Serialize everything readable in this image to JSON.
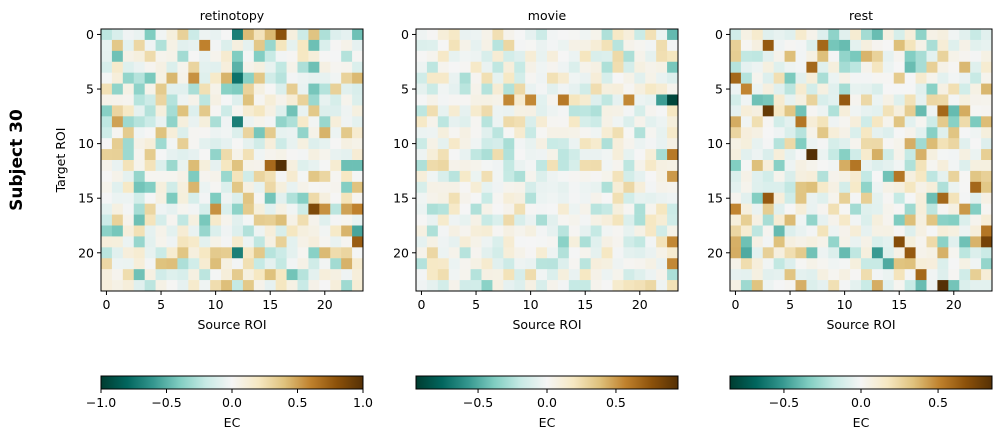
{
  "figure_label": "Subject 30",
  "chart_data": [
    {
      "type": "heatmap",
      "title": "retinotopy",
      "xlabel": "Source ROI",
      "ylabel": "Target ROI",
      "size": 24,
      "xticks": [
        0,
        5,
        10,
        15,
        20
      ],
      "yticks": [
        0,
        5,
        10,
        15,
        20
      ],
      "colormap": "BrBG_r",
      "colorbar": {
        "label": "EC",
        "range": [
          -1.0,
          1.0
        ],
        "ticks": [
          -1.0,
          -0.5,
          0.0,
          0.5,
          1.0
        ],
        "tick_labels": [
          "−1.0",
          "−0.5",
          "0.0",
          "0.5",
          "1.0"
        ]
      },
      "seed": 30,
      "scale": 0.45,
      "strong_cells": [
        [
          0,
          12,
          -0.7
        ],
        [
          0,
          16,
          0.8
        ],
        [
          0,
          4,
          -0.4
        ],
        [
          1,
          9,
          0.6
        ],
        [
          3,
          12,
          -0.5
        ],
        [
          4,
          12,
          -0.75
        ],
        [
          4,
          8,
          0.55
        ],
        [
          6,
          13,
          0.4
        ],
        [
          8,
          12,
          -0.7
        ],
        [
          8,
          1,
          0.5
        ],
        [
          12,
          16,
          1.0
        ],
        [
          12,
          15,
          0.7
        ],
        [
          12,
          22,
          -0.45
        ],
        [
          12,
          23,
          -0.45
        ],
        [
          16,
          10,
          0.55
        ],
        [
          16,
          20,
          0.55
        ],
        [
          16,
          19,
          0.85
        ],
        [
          16,
          22,
          0.5
        ],
        [
          16,
          23,
          0.6
        ],
        [
          18,
          23,
          -0.55
        ],
        [
          19,
          23,
          0.75
        ],
        [
          20,
          12,
          -0.7
        ],
        [
          21,
          22,
          0.45
        ],
        [
          22,
          15,
          0.4
        ]
      ]
    },
    {
      "type": "heatmap",
      "title": "movie",
      "xlabel": "Source ROI",
      "ylabel": "",
      "size": 24,
      "xticks": [
        0,
        5,
        10,
        15,
        20
      ],
      "yticks": [
        0,
        5,
        10,
        15,
        20
      ],
      "colormap": "BrBG_r",
      "colorbar": {
        "label": "EC",
        "range": [
          -0.95,
          0.95
        ],
        "ticks": [
          -0.5,
          0.0,
          0.5
        ],
        "tick_labels": [
          "−0.5",
          "0.0",
          "0.5"
        ]
      },
      "seed": 131,
      "scale": 0.28,
      "strong_cells": [
        [
          0,
          23,
          -0.45
        ],
        [
          3,
          23,
          -0.4
        ],
        [
          6,
          23,
          -0.9
        ],
        [
          6,
          22,
          -0.55
        ],
        [
          6,
          8,
          0.55
        ],
        [
          6,
          10,
          0.55
        ],
        [
          6,
          13,
          0.6
        ],
        [
          6,
          19,
          0.55
        ],
        [
          11,
          23,
          0.6
        ],
        [
          13,
          23,
          0.5
        ],
        [
          19,
          23,
          0.55
        ],
        [
          19,
          13,
          -0.35
        ],
        [
          21,
          23,
          0.55
        ],
        [
          23,
          6,
          -0.35
        ]
      ]
    },
    {
      "type": "heatmap",
      "title": "rest",
      "xlabel": "Source ROI",
      "ylabel": "",
      "size": 24,
      "xticks": [
        0,
        5,
        10,
        15,
        20
      ],
      "yticks": [
        0,
        5,
        10,
        15,
        20
      ],
      "colormap": "BrBG_r",
      "colorbar": {
        "label": "EC",
        "range": [
          -0.85,
          0.85
        ],
        "ticks": [
          -0.5,
          0.0,
          0.5
        ],
        "tick_labels": [
          "−0.5",
          "0.0",
          "0.5"
        ]
      },
      "seed": 257,
      "scale": 0.4,
      "strong_cells": [
        [
          1,
          3,
          0.65
        ],
        [
          1,
          8,
          0.6
        ],
        [
          3,
          7,
          0.6
        ],
        [
          4,
          0,
          0.6
        ],
        [
          5,
          1,
          0.5
        ],
        [
          6,
          10,
          0.65
        ],
        [
          7,
          3,
          0.8
        ],
        [
          7,
          19,
          0.6
        ],
        [
          8,
          6,
          0.55
        ],
        [
          11,
          7,
          0.85
        ],
        [
          12,
          11,
          0.55
        ],
        [
          13,
          15,
          0.55
        ],
        [
          14,
          22,
          0.6
        ],
        [
          15,
          3,
          0.65
        ],
        [
          15,
          19,
          0.6
        ],
        [
          16,
          0,
          0.5
        ],
        [
          16,
          21,
          0.45
        ],
        [
          18,
          23,
          0.55
        ],
        [
          19,
          15,
          0.7
        ],
        [
          19,
          23,
          0.75
        ],
        [
          20,
          16,
          0.65
        ],
        [
          20,
          13,
          -0.5
        ],
        [
          20,
          1,
          -0.45
        ],
        [
          21,
          14,
          -0.45
        ],
        [
          22,
          17,
          0.6
        ],
        [
          23,
          19,
          0.85
        ]
      ]
    }
  ]
}
